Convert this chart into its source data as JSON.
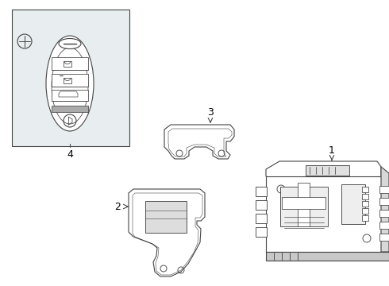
{
  "background_color": "#ffffff",
  "line_color": "#444444",
  "line_width": 0.8,
  "label_fontsize": 9,
  "bg_rect_color": "#e8eef0",
  "part_fill": "#ffffff",
  "shadow_fill": "#d8d8d8"
}
